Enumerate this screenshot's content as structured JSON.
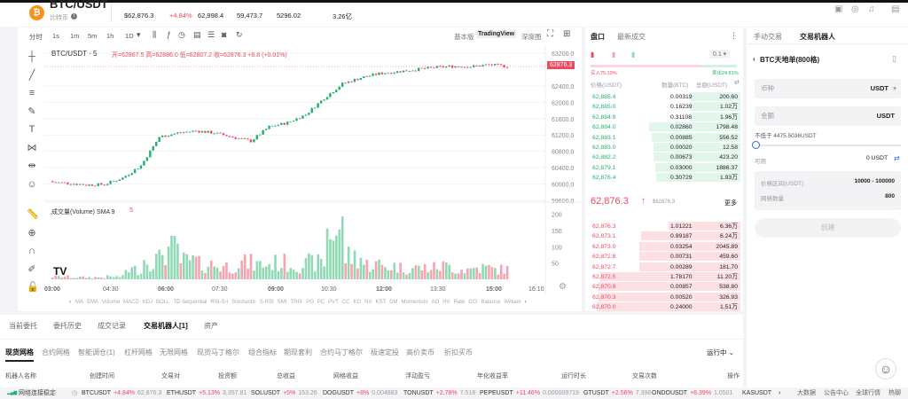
{
  "header": {
    "pair": "BTC/USDT",
    "coin_name": "比特币",
    "coin_icon": "bitcoin-icon",
    "price_usd": "$62,876.3",
    "change": "+4.84%",
    "high": "62,998.4",
    "low": "59,473.7",
    "volume_btc": "5296.02",
    "turnover": "3.26亿"
  },
  "toolbar": {
    "intervals": [
      "分时",
      "1s",
      "1m",
      "5m",
      "1h",
      "1D"
    ],
    "views": [
      "基本版",
      "TradingView",
      "深度图"
    ],
    "active_view": "TradingView"
  },
  "chart": {
    "legend_pair": "BTC/USDT · 5",
    "ohlc": "开=62867.5 高=62886.0 低=62807.2 收=62876.3 +8.8 (+0.01%)",
    "volume_legend": "成交量(Volume) SMA 9",
    "volume_legend_value": "5",
    "last_price_tag": "62876.3",
    "indicators": [
      "MA",
      "EMA",
      "Volume",
      "MACD",
      "KDJ",
      "BOLL",
      "TD Sequential",
      "RSI-S-I",
      "Stochastic",
      "S-RSI",
      "SMI",
      "TRIX",
      "PO",
      "PC",
      "PVT",
      "CC",
      "KO",
      "NV",
      "KST",
      "DM",
      "Momentum",
      "AO",
      "HV",
      "Rate",
      "CCI",
      "Balance",
      "William"
    ]
  },
  "chart_data": {
    "type": "candlestick",
    "interval": "5m",
    "price_ticks": [
      "63200.0",
      "62400.0",
      "62000.0",
      "61600.0",
      "61200.0",
      "60800.0",
      "60400.0",
      "60000.0",
      "59600.0"
    ],
    "ylim": [
      59600,
      63200
    ],
    "volume_ticks": [
      "200",
      "150",
      "100",
      "50"
    ],
    "time_ticks": [
      "03:00",
      "04:30",
      "06:00",
      "07:30",
      "09:00",
      "10:30",
      "12:00",
      "13:30",
      "15:00",
      "16:10"
    ],
    "half_hour_closes": [
      60050,
      60020,
      59980,
      59990,
      60150,
      60450,
      61150,
      61250,
      61300,
      61250,
      61150,
      61050,
      61400,
      61500,
      61700,
      62100,
      62450,
      62600,
      62700,
      62750,
      62800,
      62850,
      62880,
      62870,
      62920,
      62876.3
    ],
    "half_hour_volume": [
      8,
      6,
      6,
      8,
      30,
      60,
      90,
      55,
      45,
      40,
      50,
      45,
      50,
      45,
      50,
      150,
      70,
      45,
      40,
      35,
      35,
      40,
      30,
      35,
      30,
      20
    ]
  },
  "orderbook": {
    "tabs": [
      "盘口",
      "最新成交"
    ],
    "precision": "0.1",
    "buy_ratio": "买入75.19%",
    "sell_ratio": "卖出24.81%",
    "buy_fraction": 0.7519,
    "headers": [
      "价格(USDT)",
      "数量(BTC)",
      "总额(USDT)"
    ],
    "top_rows": [
      [
        "62,885.4",
        "0.00319",
        "200.60",
        0.33
      ],
      [
        "62,885.0",
        "0.16239",
        "1.02万",
        0.33
      ],
      [
        "62,884.9",
        "0.31108",
        "1.96万",
        0.33
      ],
      [
        "62,884.0",
        "0.02860",
        "1798.48",
        0.6
      ],
      [
        "62,883.1",
        "0.00885",
        "556.52",
        0.58
      ],
      [
        "62,883.0",
        "0.00020",
        "12.58",
        0.57
      ],
      [
        "62,882.2",
        "0.00673",
        "423.20",
        0.57
      ],
      [
        "62,879.1",
        "0.03000",
        "1886.37",
        0.56
      ],
      [
        "62,876.4",
        "0.30729",
        "1.93万",
        0.55
      ]
    ],
    "last_price": "62,876.3",
    "last_price_usd": "$62876.3",
    "more": "更多",
    "bottom_rows": [
      [
        "62,876.3",
        "1.01221",
        "6.36万",
        0.47
      ],
      [
        "62,873.1",
        "0.99187",
        "6.24万",
        0.65
      ],
      [
        "62,873.0",
        "0.03254",
        "2045.89",
        0.66
      ],
      [
        "62,872.8",
        "0.00731",
        "459.60",
        0.66
      ],
      [
        "62,872.7",
        "0.00289",
        "181.70",
        0.66
      ],
      [
        "62,872.5",
        "1.78170",
        "11.20万",
        0.92
      ],
      [
        "62,870.8",
        "0.00857",
        "538.80",
        0.93
      ],
      [
        "62,870.3",
        "0.00520",
        "326.93",
        0.93
      ],
      [
        "62,870.0",
        "0.24000",
        "1.51万",
        0.94
      ]
    ]
  },
  "right": {
    "tabs": [
      "手动交易",
      "交易机器人"
    ],
    "title": "BTC天地单(800格)",
    "currency_label": "币种",
    "currency_value": "USDT",
    "amount_label": "金额",
    "amount_unit": "USDT",
    "min_note": "不低于 4475.5036USDT",
    "available_label": "可用",
    "available_value": "0 USDT",
    "range_label": "价格区间(USDT)",
    "range_value": "10000 - 100000",
    "grid_label": "网格数量",
    "grid_value": "800",
    "create": "创建",
    "slider_value": 0
  },
  "bottom": {
    "tabs": [
      "当前委托",
      "委托历史",
      "成交记录",
      "交易机器人[1]",
      "资产"
    ],
    "subtabs": [
      "现货网格",
      "合约网格",
      "智能调仓(1)",
      "杠杆网格",
      "无限网格",
      "现货马丁格尔",
      "组合指标",
      "期现套利",
      "合约马丁格尔",
      "极速定投",
      "高价卖币",
      "折扣买币"
    ],
    "filter": "运行中",
    "columns": [
      "机器人名称",
      "创建时间",
      "交易对",
      "投资额",
      "总收益",
      "网格收益",
      "浮动盈亏",
      "年化收益率",
      "运行时长",
      "交易次数",
      "操作"
    ]
  },
  "footer": {
    "status": "网络连接稳定",
    "tickers": [
      [
        "BTCUSDT",
        "+4.84%",
        "62,876.3"
      ],
      [
        "ETHUSDT",
        "+5.13%",
        "3,357.81"
      ],
      [
        "SOLUSDT",
        "+5%",
        "153.26"
      ],
      [
        "DOGUSDT",
        "+8%",
        "0.004883"
      ],
      [
        "TONUSDT",
        "+2.78%",
        "7.518"
      ],
      [
        "PEPEUSDT",
        "+11.46%",
        "0.000009719"
      ],
      [
        "GTUSDT",
        "+2.56%",
        "7.398"
      ],
      [
        "ONDOUSDT",
        "+6.39%",
        "1.0501"
      ],
      [
        "KASUSDT",
        "",
        ""
      ]
    ],
    "links": [
      "大数据",
      "公告中心",
      "全球行情",
      "热聊"
    ]
  }
}
